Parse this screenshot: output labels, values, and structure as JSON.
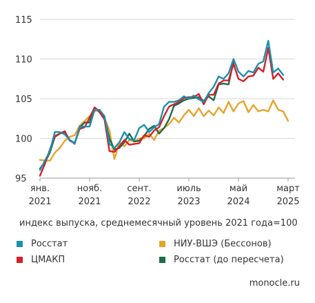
{
  "chart_data": {
    "type": "line",
    "ylim": [
      95,
      115
    ],
    "yticks": [
      "95",
      "100",
      "105",
      "110",
      "115"
    ],
    "xticks": [
      {
        "label": [
          "янв.",
          "2021"
        ],
        "index": 0
      },
      {
        "label": [
          "нояб.",
          "2021"
        ],
        "index": 10
      },
      {
        "label": [
          "сент.",
          "2022"
        ],
        "index": 20
      },
      {
        "label": [
          "июль",
          "2023"
        ],
        "index": 30
      },
      {
        "label": [
          "май",
          "2024"
        ],
        "index": 40
      },
      {
        "label": [
          "март",
          "2025"
        ],
        "index": 50
      }
    ],
    "grid": true,
    "colors": {
      "rosstat": "#1a8fb0",
      "cmakp": "#d42027",
      "hse": "#e8a22a",
      "rosstat_old": "#1a6e4a"
    },
    "series": [
      {
        "key": "hse",
        "name": "НИУ-ВШЭ (Бессонов)",
        "values": [
          97.3,
          97.2,
          97.2,
          98.2,
          98.8,
          99.7,
          100.2,
          100.4,
          101.6,
          102.2,
          102.8,
          103.4,
          103.6,
          102.6,
          101.0,
          97.4,
          99.5,
          99.0,
          99.8,
          99.6,
          100.0,
          100.0,
          100.6,
          99.8,
          101.0,
          101.3,
          101.8,
          102.6,
          102.0,
          102.9,
          103.6,
          102.8,
          103.8,
          102.8,
          103.5,
          102.9,
          103.9,
          103.2,
          104.6,
          103.4,
          104.4,
          104.7,
          103.3,
          104.2,
          103.4,
          103.6,
          103.4,
          104.8,
          103.6,
          103.4,
          102.2
        ]
      },
      {
        "key": "rosstat_old",
        "name": "Росстат (до пересчета)",
        "values": [
          96.2,
          97.0,
          98.2,
          100.2,
          100.6,
          100.8,
          99.8,
          99.4,
          101.4,
          102.0,
          102.0,
          103.9,
          103.4,
          102.6,
          100.0,
          98.6,
          98.8,
          99.5,
          100.6,
          99.6,
          99.7,
          100.3,
          101.2,
          101.6,
          100.6,
          101.3,
          102.4,
          104.1,
          104.4,
          104.8,
          105.0,
          105.1,
          105.2,
          104.7,
          105.3,
          104.8,
          106.8,
          106.9,
          106.8,
          109.7
        ]
      },
      {
        "key": "cmakp",
        "name": "ЦМАКП",
        "values": [
          95.3,
          96.8,
          98.6,
          100.3,
          100.6,
          100.9,
          99.7,
          99.4,
          101.2,
          101.4,
          102.6,
          103.9,
          103.3,
          102.4,
          98.4,
          98.3,
          99.0,
          99.8,
          99.2,
          99.3,
          99.4,
          100.4,
          100.2,
          101.0,
          101.4,
          102.8,
          104.0,
          104.3,
          104.6,
          105.1,
          105.2,
          105.2,
          105.6,
          104.3,
          105.5,
          105.5,
          106.9,
          107.3,
          107.3,
          109.4,
          107.5,
          107.2,
          107.8,
          107.9,
          108.9,
          108.4,
          111.4,
          107.5,
          108.2,
          107.4
        ]
      },
      {
        "key": "rosstat",
        "name": "Росстат",
        "values": [
          96.0,
          97.2,
          98.4,
          100.8,
          100.8,
          100.5,
          99.8,
          99.3,
          101.5,
          101.5,
          101.5,
          103.6,
          103.6,
          102.8,
          99.3,
          98.8,
          99.5,
          100.8,
          99.9,
          99.8,
          101.3,
          101.7,
          100.8,
          101.4,
          101.8,
          104.0,
          104.6,
          104.6,
          104.8,
          105.3,
          105.0,
          105.4,
          104.9,
          104.6,
          105.7,
          106.5,
          107.8,
          107.5,
          108.2,
          110.0,
          108.4,
          107.8,
          108.5,
          108.3,
          109.4,
          109.7,
          112.3,
          108.3,
          108.8,
          108.0
        ]
      }
    ]
  },
  "note": "индекс выпуска, среднемесячный уровень 2021 года=100",
  "legend": [
    {
      "label": "Росстат",
      "color": "#1a8fb0"
    },
    {
      "label": "ЦМАКП",
      "color": "#d42027"
    },
    {
      "label": "НИУ-ВШЭ (Бессонов)",
      "color": "#e8a22a"
    },
    {
      "label": "Росстат (до пересчета)",
      "color": "#1a6e4a"
    }
  ],
  "source": "monocle.ru"
}
